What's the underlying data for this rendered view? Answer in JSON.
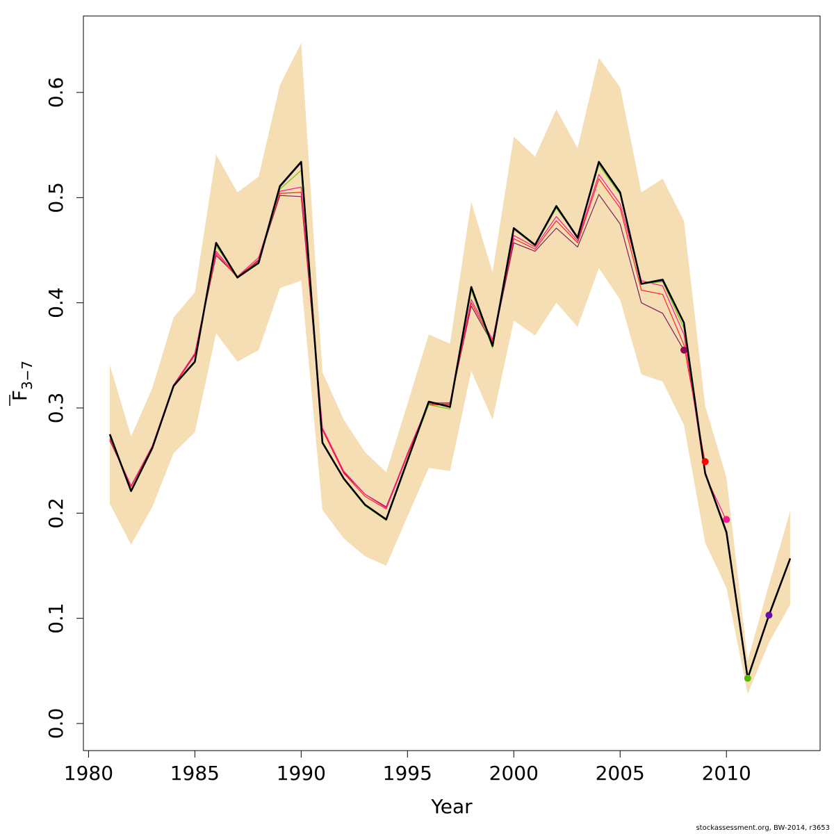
{
  "chart_data": {
    "type": "line",
    "xlabel": "Year",
    "ylabel_main": "F",
    "ylabel_sub": "3−7",
    "xlim": [
      1980,
      2014
    ],
    "ylim": [
      0.0,
      0.65
    ],
    "x_ticks": [
      1980,
      1985,
      1990,
      1995,
      2000,
      2005,
      2010
    ],
    "x_tick_labels": [
      "1980",
      "1985",
      "1990",
      "1995",
      "2000",
      "2005",
      "2010"
    ],
    "y_ticks": [
      0.0,
      0.1,
      0.2,
      0.3,
      0.4,
      0.5,
      0.6
    ],
    "y_tick_labels": [
      "0.0",
      "0.1",
      "0.2",
      "0.3",
      "0.4",
      "0.5",
      "0.6"
    ],
    "grid": false,
    "legend": "none",
    "band": {
      "color": "#F5DEB3",
      "x": [
        1981,
        1982,
        1983,
        1984,
        1985,
        1986,
        1987,
        1988,
        1989,
        1990,
        1991,
        1992,
        1993,
        1994,
        1995,
        1996,
        1997,
        1998,
        1999,
        2000,
        2001,
        2002,
        2003,
        2004,
        2005,
        2006,
        2007,
        2008,
        2009,
        2010,
        2011,
        2012,
        2013
      ],
      "upper": [
        0.341,
        0.273,
        0.319,
        0.386,
        0.41,
        0.541,
        0.505,
        0.52,
        0.607,
        0.647,
        0.334,
        0.289,
        0.258,
        0.239,
        0.304,
        0.37,
        0.361,
        0.496,
        0.429,
        0.558,
        0.539,
        0.584,
        0.547,
        0.633,
        0.605,
        0.505,
        0.518,
        0.478,
        0.302,
        0.234,
        0.06,
        0.132,
        0.202
      ],
      "lower": [
        0.209,
        0.17,
        0.206,
        0.257,
        0.277,
        0.371,
        0.344,
        0.355,
        0.414,
        0.421,
        0.203,
        0.176,
        0.159,
        0.15,
        0.197,
        0.243,
        0.24,
        0.335,
        0.289,
        0.383,
        0.369,
        0.4,
        0.377,
        0.433,
        0.403,
        0.332,
        0.325,
        0.284,
        0.172,
        0.129,
        0.028,
        0.077,
        0.113
      ]
    },
    "series": [
      {
        "color": "#7A1F5C",
        "width": 1.2,
        "x": [
          1981,
          1982,
          1983,
          1984,
          1985,
          1986,
          1987,
          1988,
          1989,
          1990,
          1991,
          1992,
          1993,
          1994,
          1995,
          1996,
          1997,
          1998,
          1999,
          2000,
          2001,
          2002,
          2003,
          2004,
          2005,
          2006,
          2007,
          2008
        ],
        "values": [
          0.269,
          0.226,
          0.263,
          0.321,
          0.351,
          0.445,
          0.425,
          0.44,
          0.502,
          0.501,
          0.28,
          0.239,
          0.218,
          0.206,
          0.256,
          0.304,
          0.304,
          0.397,
          0.361,
          0.457,
          0.449,
          0.471,
          0.453,
          0.503,
          0.475,
          0.4,
          0.39,
          0.355
        ]
      },
      {
        "color": "#FF2020",
        "width": 1.2,
        "x": [
          1981,
          1982,
          1983,
          1984,
          1985,
          1986,
          1987,
          1988,
          1989,
          1990,
          1991,
          1992,
          1993,
          1994,
          1995,
          1996,
          1997,
          1998,
          1999,
          2000,
          2001,
          2002,
          2003,
          2004,
          2005,
          2006,
          2007,
          2008,
          2009
        ],
        "values": [
          0.27,
          0.225,
          0.263,
          0.321,
          0.35,
          0.447,
          0.424,
          0.441,
          0.504,
          0.505,
          0.279,
          0.238,
          0.216,
          0.204,
          0.255,
          0.303,
          0.303,
          0.4,
          0.363,
          0.461,
          0.451,
          0.478,
          0.457,
          0.518,
          0.49,
          0.412,
          0.408,
          0.36,
          0.248
        ]
      },
      {
        "color": "#FF1493",
        "width": 1.2,
        "x": [
          1981,
          1982,
          1983,
          1984,
          1985,
          1986,
          1987,
          1988,
          1989,
          1990,
          1991,
          1992,
          1993,
          1994,
          1995,
          1996,
          1997,
          1998,
          1999,
          2000,
          2001,
          2002,
          2003,
          2004,
          2005,
          2006,
          2007,
          2008,
          2009,
          2010
        ],
        "values": [
          0.271,
          0.226,
          0.264,
          0.322,
          0.352,
          0.449,
          0.425,
          0.443,
          0.506,
          0.51,
          0.281,
          0.24,
          0.218,
          0.205,
          0.257,
          0.305,
          0.305,
          0.403,
          0.365,
          0.464,
          0.453,
          0.482,
          0.459,
          0.522,
          0.494,
          0.421,
          0.416,
          0.37,
          0.236,
          0.193
        ]
      },
      {
        "color": "#66CC00",
        "width": 1.2,
        "x": [
          1981,
          1982,
          1983,
          1984,
          1985,
          1986,
          1987,
          1988,
          1989,
          1990,
          1991,
          1992,
          1993,
          1994,
          1995,
          1996,
          1997,
          1998,
          1999,
          2000,
          2001,
          2002,
          2003,
          2004,
          2005,
          2006,
          2007,
          2008,
          2009,
          2010,
          2011
        ],
        "values": [
          0.273,
          0.222,
          0.261,
          0.321,
          0.343,
          0.454,
          0.425,
          0.437,
          0.508,
          0.526,
          0.268,
          0.232,
          0.207,
          0.193,
          0.25,
          0.303,
          0.299,
          0.412,
          0.357,
          0.47,
          0.454,
          0.49,
          0.462,
          0.531,
          0.503,
          0.418,
          0.42,
          0.376,
          0.237,
          0.18,
          0.043
        ]
      },
      {
        "color": "#6A0DAD",
        "width": 1.2,
        "x": [
          1981,
          1982,
          1983,
          1984,
          1985,
          1986,
          1987,
          1988,
          1989,
          1990,
          1991,
          1992,
          1993,
          1994,
          1995,
          1996,
          1997,
          1998,
          1999,
          2000,
          2001,
          2002,
          2003,
          2004,
          2005,
          2006,
          2007,
          2008,
          2009,
          2010,
          2011,
          2012
        ],
        "values": [
          0.274,
          0.221,
          0.262,
          0.321,
          0.344,
          0.456,
          0.424,
          0.438,
          0.51,
          0.533,
          0.267,
          0.233,
          0.208,
          0.194,
          0.25,
          0.306,
          0.301,
          0.415,
          0.359,
          0.47,
          0.455,
          0.491,
          0.461,
          0.533,
          0.504,
          0.418,
          0.421,
          0.381,
          0.238,
          0.181,
          0.043,
          0.103
        ]
      },
      {
        "color": "#000000",
        "width": 2.6,
        "x": [
          1981,
          1982,
          1983,
          1984,
          1985,
          1986,
          1987,
          1988,
          1989,
          1990,
          1991,
          1992,
          1993,
          1994,
          1995,
          1996,
          1997,
          1998,
          1999,
          2000,
          2001,
          2002,
          2003,
          2004,
          2005,
          2006,
          2007,
          2008,
          2009,
          2010,
          2011,
          2012,
          2013
        ],
        "values": [
          0.275,
          0.221,
          0.262,
          0.321,
          0.344,
          0.457,
          0.424,
          0.438,
          0.511,
          0.534,
          0.267,
          0.233,
          0.208,
          0.194,
          0.25,
          0.306,
          0.301,
          0.415,
          0.359,
          0.471,
          0.455,
          0.492,
          0.462,
          0.534,
          0.505,
          0.418,
          0.422,
          0.381,
          0.238,
          0.182,
          0.043,
          0.103,
          0.157
        ]
      }
    ],
    "endpoints": [
      {
        "x": 2008,
        "y": 0.355,
        "color": "#8B0A50"
      },
      {
        "x": 2009,
        "y": 0.249,
        "color": "#FF0000"
      },
      {
        "x": 2010,
        "y": 0.194,
        "color": "#FF1493"
      },
      {
        "x": 2011,
        "y": 0.043,
        "color": "#55BB00"
      },
      {
        "x": 2012,
        "y": 0.103,
        "color": "#6A0DAD"
      }
    ]
  },
  "footer": {
    "credit": "stockassessment.org, BW-2014, r3653"
  }
}
